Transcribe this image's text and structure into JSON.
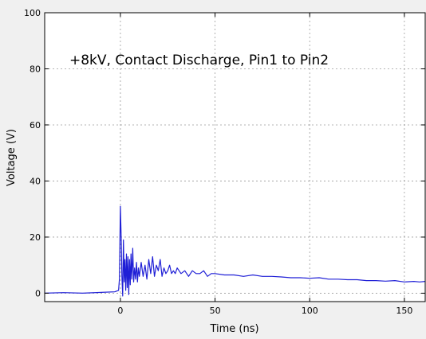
{
  "chart_data": {
    "type": "line",
    "title": "",
    "annotation": "+8kV, Contact Discharge, Pin1 to Pin2",
    "xlabel": "Time (ns)",
    "ylabel": "Voltage (V)",
    "xlim": [
      -40,
      161
    ],
    "ylim": [
      -3,
      100
    ],
    "xticks": [
      0,
      50,
      100,
      150
    ],
    "yticks": [
      0,
      20,
      40,
      60,
      80,
      100
    ],
    "grid": true,
    "line_color": "#1f1fd6",
    "series": [
      {
        "x": [
          -40,
          -30,
          -20,
          -10,
          -3,
          -1,
          -0.5,
          0,
          0.4,
          0.8,
          1.2,
          1.6,
          2.0,
          2.4,
          2.8,
          3.2,
          3.6,
          4.0,
          4.4,
          4.8,
          5.2,
          5.6,
          6.0,
          6.5,
          7.0,
          7.5,
          8.0,
          8.5,
          9.0,
          9.5,
          10.0,
          11,
          12,
          13,
          14,
          15,
          16,
          17,
          18,
          19,
          20,
          21,
          22,
          23,
          24,
          25,
          26,
          27,
          28,
          29,
          30,
          32,
          34,
          36,
          38,
          40,
          42,
          44,
          46,
          48,
          50,
          55,
          60,
          65,
          70,
          75,
          80,
          85,
          90,
          95,
          100,
          105,
          110,
          115,
          120,
          125,
          130,
          135,
          140,
          145,
          150,
          155,
          158,
          161
        ],
        "y": [
          0,
          0.2,
          0,
          0.3,
          0.5,
          1,
          5,
          31,
          20,
          6,
          -1,
          19,
          4,
          12,
          1,
          14,
          2,
          13,
          -0.5,
          12,
          3,
          14,
          5,
          16,
          4,
          9,
          5,
          11,
          4,
          9,
          6,
          11,
          6,
          10,
          5,
          12,
          7,
          13,
          6,
          10,
          8,
          12,
          6,
          9,
          7,
          8,
          10,
          7,
          8,
          7,
          9,
          7,
          8,
          6,
          8,
          7,
          7,
          8,
          6,
          7,
          7,
          6.5,
          6.5,
          6,
          6.5,
          6,
          6,
          5.8,
          5.5,
          5.5,
          5.3,
          5.5,
          5,
          5,
          4.8,
          4.8,
          4.5,
          4.5,
          4.3,
          4.5,
          4,
          4.2,
          4,
          4.2
        ]
      }
    ]
  }
}
